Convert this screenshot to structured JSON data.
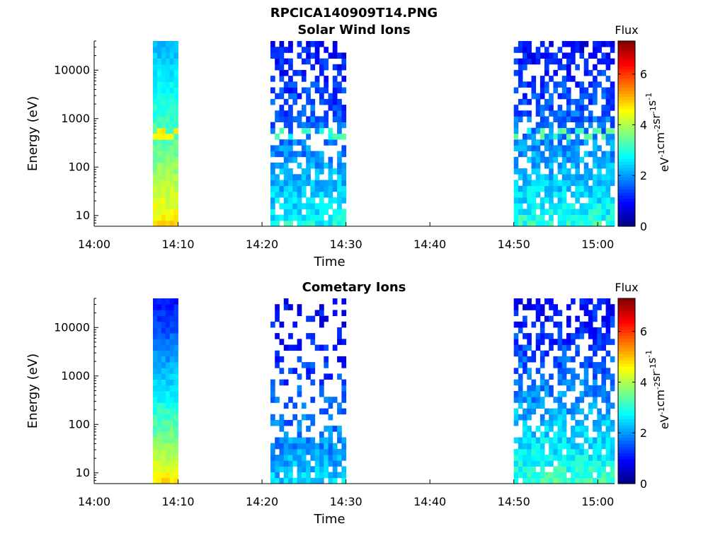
{
  "figure": {
    "title": "RPCICA140909T14.PNG"
  },
  "chart_data": [
    {
      "type": "heatmap",
      "title": "Solar Wind Ions",
      "xlabel": "Time",
      "ylabel": "Energy (eV)",
      "y_scale": "log",
      "xlim": [
        "14:00",
        "15:02"
      ],
      "ylim": [
        6,
        40000
      ],
      "x_ticks": [
        "14:00",
        "14:10",
        "14:20",
        "14:30",
        "14:40",
        "14:50",
        "15:00"
      ],
      "y_ticks": [
        "10",
        "100",
        "1000",
        "10000"
      ],
      "colorbar": {
        "title": "Flux",
        "label": "eV-1cm-2sr-1s-1",
        "range": [
          0,
          7.3
        ],
        "ticks": [
          "0",
          "2",
          "4",
          "6"
        ],
        "colormap": "jet"
      },
      "intervals": [
        {
          "start": "14:07",
          "end": "14:10",
          "level_low": 4.8,
          "level_high": 2.2,
          "coverage": 1.0,
          "peak_energy": 600
        },
        {
          "start": "14:21",
          "end": "14:30",
          "level_low": 2.8,
          "level_high": 0.9,
          "coverage": 0.8,
          "peak_energy": 630
        },
        {
          "start": "14:50",
          "end": "15:02",
          "level_low": 3.0,
          "level_high": 0.9,
          "coverage": 0.85,
          "peak_energy": 630
        }
      ]
    },
    {
      "type": "heatmap",
      "title": "Cometary Ions",
      "xlabel": "Time",
      "ylabel": "Energy (eV)",
      "y_scale": "log",
      "xlim": [
        "14:00",
        "15:02"
      ],
      "ylim": [
        6,
        40000
      ],
      "x_ticks": [
        "14:00",
        "14:10",
        "14:20",
        "14:30",
        "14:40",
        "14:50",
        "15:00"
      ],
      "y_ticks": [
        "10",
        "100",
        "1000",
        "10000"
      ],
      "colorbar": {
        "title": "Flux",
        "label": "eV-1cm-2sr-1s-1",
        "range": [
          0,
          7.3
        ],
        "ticks": [
          "0",
          "2",
          "4",
          "6"
        ],
        "colormap": "jet"
      },
      "intervals": [
        {
          "start": "14:07",
          "end": "14:10",
          "level_low": 4.8,
          "level_high": 1.0,
          "coverage": 1.0,
          "peak_energy": 0
        },
        {
          "start": "14:21",
          "end": "14:30",
          "level_low": 2.4,
          "level_high": 0.8,
          "coverage": 0.4,
          "peak_energy": 0
        },
        {
          "start": "14:50",
          "end": "15:02",
          "level_low": 3.2,
          "level_high": 0.9,
          "coverage": 0.75,
          "peak_energy": 0
        }
      ]
    }
  ]
}
